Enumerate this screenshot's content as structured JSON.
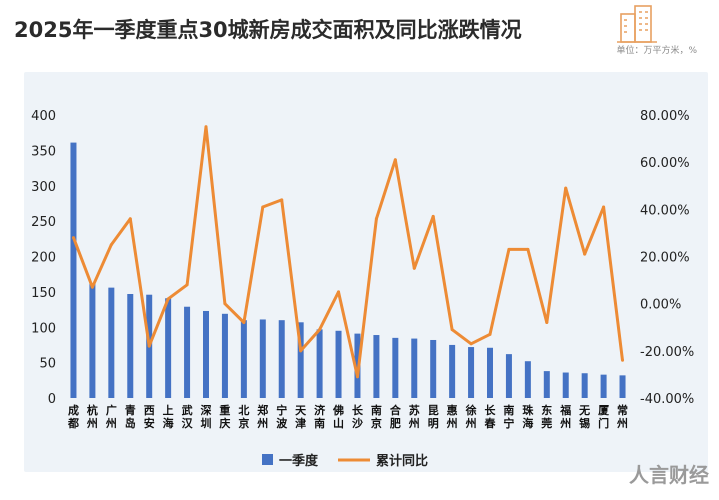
{
  "header": {
    "title": "2025年一季度重点30城新房成交面积及同比涨跌情况",
    "unit": "单位：万平方米，%"
  },
  "watermark": "人言财经",
  "colors": {
    "bar": "#4472c4",
    "line": "#ed8b35",
    "panel": "#eef3f8"
  },
  "chart_data": {
    "type": "bar",
    "categories": [
      "成都",
      "杭州",
      "广州",
      "青岛",
      "西安",
      "上海",
      "武汉",
      "深圳",
      "重庆",
      "北京",
      "郑州",
      "宁波",
      "天津",
      "济南",
      "佛山",
      "长沙",
      "南京",
      "合肥",
      "苏州",
      "昆明",
      "惠州",
      "徐州",
      "长春",
      "南宁",
      "珠海",
      "东莞",
      "福州",
      "无锡",
      "厦门",
      "常州"
    ],
    "series": [
      {
        "name": "一季度",
        "type": "bar",
        "axis": "left",
        "values": [
          361,
          162,
          156,
          147,
          146,
          141,
          129,
          123,
          119,
          110,
          111,
          110,
          107,
          97,
          95,
          91,
          89,
          85,
          84,
          82,
          75,
          72,
          71,
          62,
          52,
          38,
          36,
          35,
          33,
          32
        ]
      },
      {
        "name": "累计同比",
        "type": "line",
        "axis": "right",
        "values": [
          28,
          7,
          25,
          36,
          -18,
          2,
          8,
          75,
          0,
          -8,
          41,
          44,
          -20,
          -11,
          5,
          -31,
          36,
          61,
          15,
          37,
          -11,
          -17,
          -13,
          23,
          23,
          -8,
          49,
          21,
          41,
          -24
        ]
      }
    ],
    "ylim_left": [
      0,
      400
    ],
    "yticks_left": [
      "0",
      "50",
      "100",
      "150",
      "200",
      "250",
      "300",
      "350",
      "400"
    ],
    "ylim_right": [
      -40,
      80
    ],
    "yticks_right": [
      "-40.00%",
      "-20.00%",
      "0.00%",
      "20.00%",
      "40.00%",
      "60.00%",
      "80.00%"
    ],
    "legend_position": "bottom-center"
  }
}
